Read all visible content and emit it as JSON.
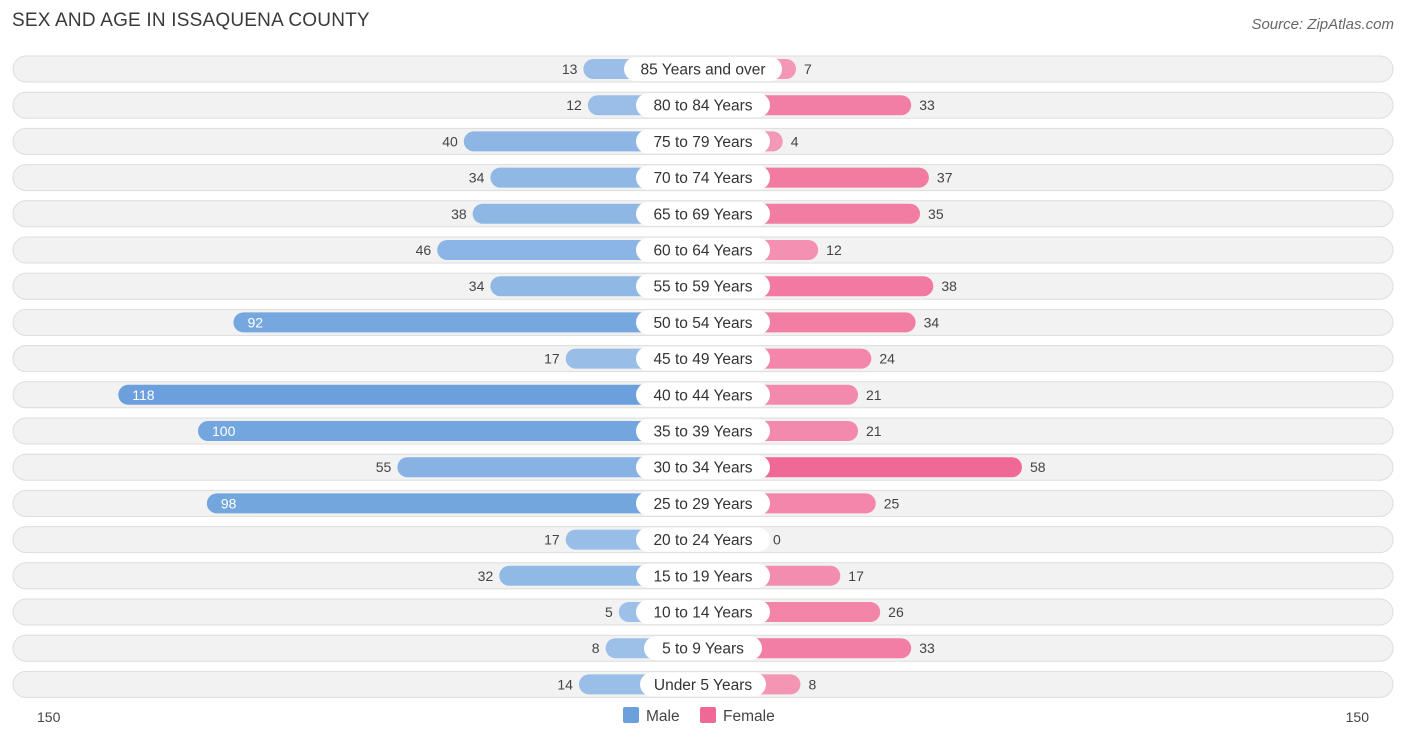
{
  "chart_data": {
    "type": "bar",
    "orientation": "horizontal-diverging",
    "title": "SEX AND AGE IN ISSAQUENA COUNTY",
    "source": "Source: ZipAtlas.com",
    "categories": [
      "85 Years and over",
      "80 to 84 Years",
      "75 to 79 Years",
      "70 to 74 Years",
      "65 to 69 Years",
      "60 to 64 Years",
      "55 to 59 Years",
      "50 to 54 Years",
      "45 to 49 Years",
      "40 to 44 Years",
      "35 to 39 Years",
      "30 to 34 Years",
      "25 to 29 Years",
      "20 to 24 Years",
      "15 to 19 Years",
      "10 to 14 Years",
      "5 to 9 Years",
      "Under 5 Years"
    ],
    "series": [
      {
        "name": "Male",
        "color": "#6ba0dc",
        "values": [
          13,
          12,
          40,
          34,
          38,
          46,
          34,
          92,
          17,
          118,
          100,
          55,
          98,
          17,
          32,
          5,
          8,
          14
        ]
      },
      {
        "name": "Female",
        "color": "#f06895",
        "values": [
          7,
          33,
          4,
          37,
          35,
          12,
          38,
          34,
          24,
          21,
          21,
          58,
          25,
          0,
          17,
          26,
          33,
          8
        ]
      }
    ],
    "xlim": [
      -150,
      150
    ],
    "axis_labels": {
      "left": "150",
      "right": "150"
    },
    "legend": [
      "Male",
      "Female"
    ],
    "legend_position": "bottom-center"
  }
}
